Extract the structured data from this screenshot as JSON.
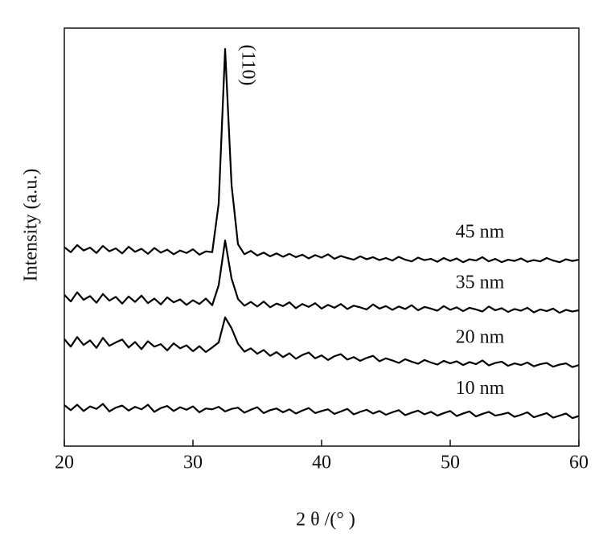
{
  "chart_data": {
    "type": "line",
    "xlabel": "2 θ /(° )",
    "ylabel": "Intensity (a.u.)",
    "annotation": "(110)",
    "xlim": [
      20,
      60
    ],
    "xticks": [
      20,
      30,
      40,
      50,
      60
    ],
    "ylim": [
      0,
      100
    ],
    "x": [
      20,
      20.5,
      21,
      21.5,
      22,
      22.5,
      23,
      23.5,
      24,
      24.5,
      25,
      25.5,
      26,
      26.5,
      27,
      27.5,
      28,
      28.5,
      29,
      29.5,
      30,
      30.5,
      31,
      31.5,
      32,
      32.5,
      33,
      33.5,
      34,
      34.5,
      35,
      35.5,
      36,
      36.5,
      37,
      37.5,
      38,
      38.5,
      39,
      39.5,
      40,
      40.5,
      41,
      41.5,
      42,
      42.5,
      43,
      43.5,
      44,
      44.5,
      45,
      45.5,
      46,
      46.5,
      47,
      47.5,
      48,
      48.5,
      49,
      49.5,
      50,
      50.5,
      51,
      51.5,
      52,
      52.5,
      53,
      53.5,
      54,
      54.5,
      55,
      55.5,
      56,
      56.5,
      57,
      57.5,
      58,
      58.5,
      59,
      59.5,
      60
    ],
    "series": [
      {
        "name": "10 nm",
        "color": "#000000",
        "values": [
          9.8,
          8.6,
          9.9,
          8.4,
          9.5,
          8.9,
          10.1,
          8.3,
          9.2,
          9.7,
          8.5,
          9.4,
          8.8,
          9.9,
          8.2,
          9.1,
          9.6,
          8.4,
          9.3,
          8.7,
          9.5,
          8.1,
          9.0,
          8.8,
          9.4,
          8.3,
          8.9,
          9.2,
          8.0,
          8.7,
          9.3,
          7.9,
          8.6,
          9.0,
          8.1,
          8.8,
          7.8,
          8.5,
          9.1,
          7.9,
          8.4,
          8.8,
          7.7,
          8.3,
          8.9,
          7.6,
          8.2,
          8.7,
          7.8,
          8.4,
          7.5,
          8.1,
          8.6,
          7.4,
          8.0,
          8.5,
          7.6,
          8.2,
          7.3,
          7.9,
          8.4,
          7.2,
          7.8,
          8.3,
          7.1,
          7.7,
          8.2,
          7.3,
          7.6,
          8.0,
          7.0,
          7.5,
          8.1,
          6.9,
          7.4,
          7.9,
          6.8,
          7.3,
          7.8,
          6.7,
          7.2
        ]
      },
      {
        "name": "20 nm",
        "color": "#000000",
        "values": [
          25.6,
          23.8,
          26.1,
          24.2,
          25.3,
          23.5,
          25.9,
          24.0,
          24.8,
          25.5,
          23.6,
          24.9,
          23.2,
          25.1,
          23.8,
          24.4,
          22.9,
          24.6,
          23.4,
          24.1,
          22.7,
          23.9,
          22.5,
          23.6,
          24.8,
          30.8,
          28.2,
          24.5,
          22.6,
          23.4,
          22.1,
          23.0,
          21.6,
          22.5,
          21.3,
          22.2,
          20.9,
          21.8,
          22.4,
          21.0,
          21.7,
          20.6,
          21.5,
          22.0,
          20.7,
          21.3,
          20.4,
          21.1,
          21.6,
          20.3,
          21.0,
          20.5,
          19.9,
          20.8,
          20.2,
          19.7,
          20.6,
          20.0,
          19.5,
          20.4,
          19.8,
          20.3,
          19.4,
          20.1,
          19.6,
          20.5,
          19.3,
          19.9,
          20.2,
          19.2,
          19.8,
          19.4,
          20.0,
          19.1,
          19.6,
          19.9,
          19.0,
          19.5,
          19.8,
          18.9,
          19.4
        ]
      },
      {
        "name": "35 nm",
        "color": "#000000",
        "values": [
          36.2,
          34.6,
          36.8,
          35.0,
          35.9,
          34.3,
          36.4,
          34.8,
          35.7,
          34.1,
          35.8,
          34.5,
          36.0,
          34.2,
          35.3,
          33.9,
          35.6,
          34.4,
          35.1,
          33.8,
          34.9,
          34.0,
          35.3,
          33.7,
          38.5,
          49.2,
          40.1,
          35.2,
          33.6,
          34.5,
          33.4,
          34.6,
          33.2,
          34.1,
          33.5,
          34.4,
          33.0,
          34.0,
          33.3,
          34.2,
          32.9,
          33.8,
          33.1,
          34.0,
          32.8,
          33.6,
          33.2,
          32.7,
          33.9,
          32.9,
          33.5,
          32.6,
          33.4,
          32.8,
          33.7,
          32.5,
          33.3,
          32.9,
          32.4,
          33.5,
          32.6,
          33.2,
          32.3,
          33.1,
          32.7,
          32.2,
          33.4,
          32.5,
          33.0,
          32.1,
          32.8,
          32.4,
          33.1,
          32.0,
          32.7,
          32.3,
          32.9,
          31.9,
          32.6,
          32.2,
          32.5
        ]
      },
      {
        "name": "45 nm",
        "color": "#000000",
        "values": [
          47.6,
          46.4,
          48.1,
          46.8,
          47.5,
          46.2,
          47.9,
          46.6,
          47.3,
          46.1,
          47.7,
          46.5,
          47.2,
          46.0,
          47.4,
          46.3,
          47.0,
          45.9,
          46.8,
          46.2,
          47.1,
          45.8,
          46.6,
          46.4,
          58.0,
          95.0,
          62.5,
          48.3,
          45.9,
          46.7,
          45.6,
          46.3,
          45.4,
          46.1,
          45.3,
          46.0,
          45.2,
          45.8,
          44.9,
          45.7,
          45.1,
          45.9,
          44.8,
          45.5,
          45.0,
          44.6,
          45.4,
          44.7,
          45.2,
          44.5,
          45.0,
          44.4,
          45.3,
          44.6,
          44.2,
          45.1,
          44.5,
          44.8,
          44.1,
          45.0,
          44.3,
          44.9,
          44.0,
          44.7,
          44.4,
          45.2,
          44.2,
          44.8,
          44.0,
          44.6,
          44.3,
          44.9,
          44.1,
          44.5,
          44.2,
          45.0,
          44.4,
          44.0,
          44.7,
          44.3,
          44.6
        ]
      }
    ]
  }
}
